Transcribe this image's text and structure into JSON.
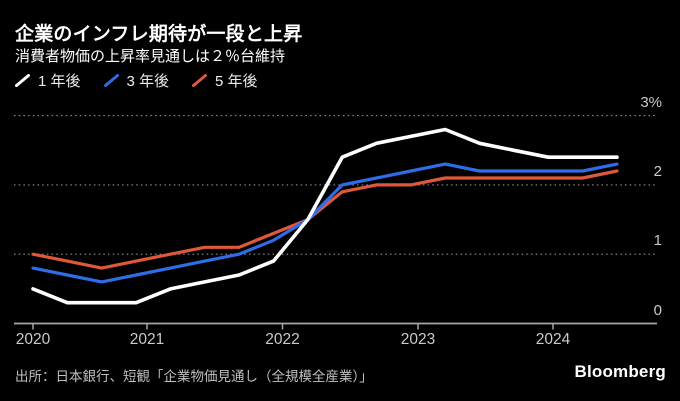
{
  "header": {
    "title": "企業のインフレ期待が一段と上昇",
    "subtitle": "消費者物価の上昇率見通しは２％台維持"
  },
  "chart_data": {
    "type": "line",
    "title": "企業のインフレ期待が一段と上昇",
    "subtitle": "消費者物価の上昇率見通しは２％台維持",
    "categories": [
      "2020 Q1",
      "2020 Q2",
      "2020 Q3",
      "2020 Q4",
      "2021 Q1",
      "2021 Q2",
      "2021 Q3",
      "2021 Q4",
      "2022 Q1",
      "2022 Q2",
      "2022 Q3",
      "2022 Q4",
      "2023 Q1",
      "2023 Q2",
      "2023 Q3",
      "2023 Q4",
      "2024 Q1",
      "2024 Q2"
    ],
    "series": [
      {
        "name": "1 年後",
        "color": "#ffffff",
        "values": [
          0.5,
          0.3,
          0.3,
          0.3,
          0.5,
          0.6,
          0.7,
          0.9,
          1.5,
          2.4,
          2.6,
          2.7,
          2.8,
          2.6,
          2.5,
          2.4,
          2.4,
          2.4
        ]
      },
      {
        "name": "3 年後",
        "color": "#2e6de6",
        "values": [
          0.8,
          0.7,
          0.6,
          0.7,
          0.8,
          0.9,
          1.0,
          1.2,
          1.5,
          2.0,
          2.1,
          2.2,
          2.3,
          2.2,
          2.2,
          2.2,
          2.2,
          2.3
        ]
      },
      {
        "name": "5 年後",
        "color": "#e0583a",
        "values": [
          1.0,
          0.9,
          0.8,
          0.9,
          1.0,
          1.1,
          1.1,
          1.3,
          1.5,
          1.9,
          2.0,
          2.0,
          2.1,
          2.1,
          2.1,
          2.1,
          2.1,
          2.2
        ]
      }
    ],
    "x_tick_labels": [
      "2020",
      "2021",
      "2022",
      "2023",
      "2024"
    ],
    "y_tick_labels": [
      "3%",
      "2",
      "1",
      "0"
    ],
    "ylim": [
      0,
      3
    ],
    "unit": "%",
    "grid": "horizontal-dotted",
    "legend_position": "top-left"
  },
  "footer": {
    "source": "出所：日本銀行、短観「企業物価見通し（全規模全産業）」",
    "brand": "Bloomberg"
  },
  "colors": {
    "background": "#000000",
    "axis": "#a6a6a6",
    "gridline": "#8f8f8f",
    "tick_label": "#c9c9c9"
  }
}
